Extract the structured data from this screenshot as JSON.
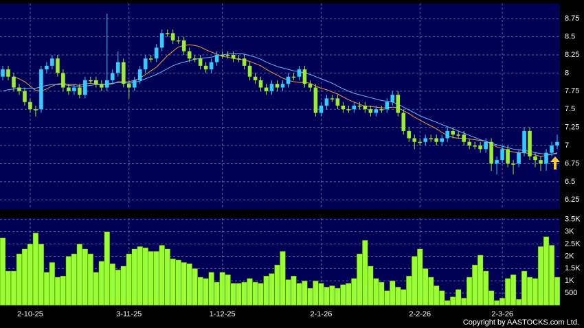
{
  "chart_data": [
    {
      "type": "candlestick",
      "ylim": [
        6.12,
        8.96
      ],
      "yticks": [
        6.25,
        6.5,
        6.75,
        7,
        7.25,
        7.5,
        7.75,
        8,
        8.25,
        8.5,
        8.75
      ],
      "grid": true,
      "up_color": "#33ccff",
      "down_color": "#99ee33",
      "open": [
        7.95,
        8.05,
        7.95,
        7.8,
        7.75,
        7.6,
        7.5,
        7.5,
        8.05,
        8.1,
        8.2,
        8.0,
        7.8,
        7.75,
        7.8,
        7.7,
        7.9,
        7.9,
        7.85,
        7.8,
        7.9,
        8.0,
        8.15,
        7.85,
        7.8,
        7.9,
        8.05,
        8.2,
        8.2,
        8.35,
        8.55,
        8.55,
        8.45,
        8.45,
        8.3,
        8.2,
        8.2,
        8.1,
        8.05,
        8.15,
        8.25,
        8.25,
        8.25,
        8.2,
        8.2,
        8.1,
        7.95,
        7.9,
        7.8,
        7.75,
        7.85,
        7.8,
        7.85,
        7.95,
        7.95,
        8.05,
        7.85,
        7.8,
        7.45,
        7.55,
        7.65,
        7.65,
        7.55,
        7.5,
        7.5,
        7.55,
        7.55,
        7.5,
        7.45,
        7.5,
        7.5,
        7.6,
        7.7,
        7.45,
        7.2,
        7.1,
        7.05,
        7.05,
        7.1,
        7.1,
        7.05,
        7.1,
        7.2,
        7.15,
        7.15,
        7.05,
        7.0,
        7.0,
        6.95,
        7.05,
        6.75,
        6.8,
        6.95,
        6.75,
        6.75,
        6.9,
        7.2,
        6.85,
        6.8,
        6.75,
        6.9,
        7.0
      ],
      "high": [
        8.1,
        8.1,
        8.0,
        7.85,
        7.8,
        7.65,
        7.55,
        8.1,
        8.15,
        8.25,
        8.25,
        8.05,
        7.85,
        7.85,
        7.85,
        7.95,
        7.95,
        7.95,
        7.9,
        8.82,
        8.05,
        8.3,
        8.2,
        7.9,
        7.95,
        8.1,
        8.25,
        8.25,
        8.4,
        8.6,
        8.6,
        8.6,
        8.5,
        8.5,
        8.35,
        8.25,
        8.25,
        8.15,
        8.2,
        8.3,
        8.3,
        8.3,
        8.3,
        8.25,
        8.25,
        8.15,
        8.0,
        7.95,
        7.85,
        7.9,
        7.9,
        7.9,
        8.0,
        8.0,
        8.1,
        8.1,
        7.9,
        7.85,
        7.6,
        7.7,
        7.7,
        7.7,
        7.6,
        7.55,
        7.6,
        7.6,
        7.6,
        7.55,
        7.55,
        7.55,
        7.65,
        7.75,
        7.75,
        7.5,
        7.25,
        7.15,
        7.1,
        7.15,
        7.15,
        7.15,
        7.15,
        7.25,
        7.25,
        7.2,
        7.2,
        7.1,
        7.05,
        7.05,
        7.1,
        7.1,
        6.85,
        7.0,
        7.0,
        6.8,
        6.95,
        7.25,
        7.25,
        6.9,
        6.85,
        6.95,
        7.05,
        7.15
      ],
      "low": [
        7.9,
        7.9,
        7.75,
        7.7,
        7.55,
        7.45,
        7.4,
        7.45,
        8.0,
        8.05,
        7.95,
        7.75,
        7.7,
        7.7,
        7.65,
        7.65,
        7.85,
        7.8,
        7.75,
        7.75,
        7.85,
        7.95,
        7.8,
        7.65,
        7.75,
        7.85,
        8.0,
        8.15,
        8.15,
        8.3,
        8.5,
        8.4,
        8.4,
        8.25,
        8.15,
        8.15,
        8.05,
        8.0,
        8.0,
        8.1,
        8.2,
        8.2,
        8.15,
        8.15,
        8.05,
        7.9,
        7.85,
        7.75,
        7.7,
        7.7,
        7.75,
        7.75,
        7.8,
        7.9,
        7.9,
        7.8,
        7.75,
        7.4,
        7.4,
        7.5,
        7.6,
        7.5,
        7.45,
        7.45,
        7.45,
        7.5,
        7.45,
        7.4,
        7.4,
        7.45,
        7.45,
        7.55,
        7.4,
        7.15,
        7.05,
        6.95,
        7.0,
        7.0,
        7.05,
        7.0,
        7.0,
        7.05,
        7.1,
        7.1,
        7.0,
        6.95,
        6.95,
        6.9,
        6.9,
        6.65,
        6.6,
        6.75,
        6.7,
        6.6,
        6.7,
        6.85,
        6.8,
        6.7,
        6.65,
        6.65,
        6.85,
        6.95
      ],
      "close": [
        8.05,
        7.95,
        7.8,
        7.75,
        7.6,
        7.5,
        7.5,
        8.05,
        8.1,
        8.2,
        8.0,
        7.8,
        7.75,
        7.8,
        7.7,
        7.9,
        7.9,
        7.85,
        7.8,
        7.9,
        8.0,
        8.15,
        7.85,
        7.8,
        7.9,
        8.05,
        8.2,
        8.2,
        8.35,
        8.55,
        8.55,
        8.45,
        8.45,
        8.3,
        8.2,
        8.2,
        8.1,
        8.05,
        8.15,
        8.25,
        8.25,
        8.25,
        8.2,
        8.2,
        8.1,
        7.95,
        7.9,
        7.8,
        7.75,
        7.85,
        7.8,
        7.85,
        7.95,
        7.95,
        8.05,
        7.85,
        7.8,
        7.45,
        7.55,
        7.65,
        7.65,
        7.55,
        7.5,
        7.5,
        7.55,
        7.55,
        7.5,
        7.45,
        7.5,
        7.5,
        7.6,
        7.7,
        7.45,
        7.2,
        7.1,
        7.05,
        7.05,
        7.1,
        7.1,
        7.05,
        7.1,
        7.2,
        7.15,
        7.15,
        7.05,
        7.0,
        7.0,
        6.95,
        7.05,
        6.75,
        6.8,
        6.95,
        6.75,
        6.75,
        6.9,
        7.2,
        6.85,
        6.8,
        6.75,
        6.9,
        7.0,
        7.05
      ],
      "lines": [
        {
          "color": "#ff9933",
          "values": [
            null,
            null,
            7.95,
            7.92,
            7.88,
            7.82,
            7.76,
            7.75,
            7.78,
            7.82,
            7.85,
            7.86,
            7.84,
            7.84,
            7.83,
            7.85,
            7.86,
            7.85,
            7.84,
            7.84,
            7.85,
            7.88,
            7.88,
            7.88,
            7.9,
            7.93,
            7.98,
            8.03,
            8.08,
            8.16,
            8.24,
            8.3,
            8.36,
            8.38,
            8.39,
            8.38,
            8.36,
            8.32,
            8.29,
            8.26,
            8.23,
            8.22,
            8.2,
            8.19,
            8.18,
            8.16,
            8.13,
            8.1,
            8.05,
            8.01,
            7.97,
            7.93,
            7.9,
            7.88,
            7.87,
            7.87,
            7.86,
            7.82,
            7.79,
            7.77,
            7.74,
            7.71,
            7.67,
            7.63,
            7.6,
            7.57,
            7.54,
            7.54,
            7.53,
            7.52,
            7.52,
            7.53,
            7.52,
            7.48,
            7.44,
            7.39,
            7.35,
            7.31,
            7.27,
            7.23,
            7.18,
            7.14,
            7.11,
            7.1,
            7.1,
            7.09,
            7.08,
            7.07,
            7.06,
            7.02,
            6.98,
            6.96,
            6.93,
            6.91,
            6.9,
            6.9,
            6.89,
            6.87,
            6.85,
            6.86,
            6.88,
            6.9
          ]
        },
        {
          "color": "#66bbff",
          "values": [
            7.75,
            7.77,
            7.78,
            7.79,
            7.79,
            7.79,
            7.79,
            7.81,
            7.83,
            7.84,
            7.84,
            7.84,
            7.83,
            7.82,
            7.81,
            7.82,
            7.83,
            7.84,
            7.84,
            7.85,
            7.86,
            7.87,
            7.87,
            7.86,
            7.87,
            7.89,
            7.92,
            7.95,
            7.98,
            8.02,
            8.06,
            8.1,
            8.13,
            8.15,
            8.17,
            8.19,
            8.2,
            8.21,
            8.22,
            8.24,
            8.25,
            8.26,
            8.27,
            8.27,
            8.26,
            8.24,
            8.22,
            8.19,
            8.15,
            8.12,
            8.09,
            8.07,
            8.05,
            8.03,
            8.02,
            8.0,
            7.98,
            7.95,
            7.92,
            7.89,
            7.86,
            7.82,
            7.78,
            7.75,
            7.72,
            7.7,
            7.68,
            7.66,
            7.64,
            7.62,
            7.61,
            7.6,
            7.57,
            7.53,
            7.49,
            7.45,
            7.41,
            7.38,
            7.35,
            7.32,
            7.29,
            7.26,
            7.23,
            7.2,
            7.17,
            7.14,
            7.11,
            7.08,
            7.06,
            7.03,
            7.01,
            6.99,
            6.97,
            6.95,
            6.94,
            6.93,
            6.92,
            6.9,
            6.89,
            6.88,
            6.88,
            6.89
          ]
        }
      ]
    },
    {
      "type": "bar",
      "color": "#99ff33",
      "ylim": [
        0,
        3550
      ],
      "yticks": [
        500,
        {
          "value": 1000,
          "label": "1K"
        },
        {
          "value": 1500,
          "label": "1.5K"
        },
        {
          "value": 2000,
          "label": "2K"
        },
        {
          "value": 2500,
          "label": "2.5K"
        },
        {
          "value": 3000,
          "label": "3K"
        },
        {
          "value": 3500,
          "label": "3.5K"
        }
      ],
      "grid": true,
      "categories": [
        null,
        null,
        null,
        null,
        null,
        "2-10-25",
        null,
        null,
        null,
        null,
        null,
        null,
        null,
        null,
        null,
        null,
        null,
        null,
        null,
        null,
        null,
        null,
        null,
        "3-11-25",
        null,
        null,
        null,
        null,
        null,
        null,
        null,
        null,
        null,
        null,
        null,
        null,
        null,
        null,
        null,
        null,
        "1-12-25",
        null,
        null,
        null,
        null,
        null,
        null,
        null,
        null,
        null,
        null,
        null,
        null,
        null,
        null,
        null,
        null,
        null,
        "2-1-26",
        null,
        null,
        null,
        null,
        null,
        null,
        null,
        null,
        null,
        null,
        null,
        null,
        null,
        null,
        null,
        null,
        null,
        "2-2-26",
        null,
        null,
        null,
        null,
        null,
        null,
        null,
        null,
        null,
        null,
        null,
        null,
        null,
        null,
        "2-3-26",
        null,
        null,
        null,
        null,
        null,
        null,
        null,
        null,
        null,
        null
      ],
      "values": [
        2750,
        1400,
        1400,
        2100,
        2300,
        2500,
        2950,
        2500,
        1350,
        1750,
        1150,
        1200,
        2000,
        2100,
        2500,
        2300,
        2100,
        1350,
        1800,
        3000,
        1700,
        1450,
        1600,
        2100,
        2300,
        2400,
        2350,
        2200,
        2200,
        2450,
        2300,
        1900,
        1850,
        1750,
        1700,
        1500,
        1150,
        1100,
        1350,
        950,
        1350,
        1250,
        900,
        900,
        950,
        1100,
        950,
        900,
        1200,
        1300,
        1650,
        2200,
        1050,
        1200,
        900,
        1000,
        700,
        1000,
        900,
        750,
        800,
        700,
        850,
        900,
        1100,
        2100,
        2650,
        1600,
        1100,
        950,
        600,
        1000,
        750,
        650,
        1200,
        2000,
        2300,
        1500,
        1150,
        800,
        600,
        200,
        350,
        650,
        300,
        1150,
        1650,
        2050,
        1400,
        600,
        200,
        300,
        1100,
        1250,
        250,
        1400,
        1150,
        1100,
        2400,
        2800,
        2450,
        1150
      ]
    }
  ],
  "footer": "Copyright by AASTOCKS.com Ltd."
}
